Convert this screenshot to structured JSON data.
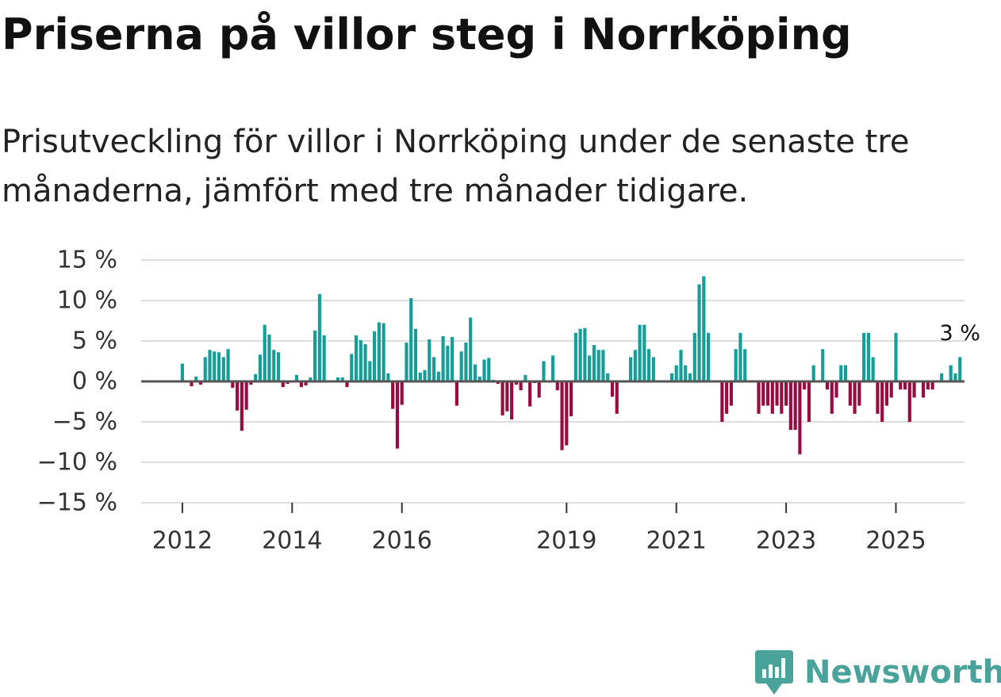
{
  "title": "Priserna på villor steg i Norrköping",
  "subtitle": "Prisutveckling för villor i Norrköping under de senaste tre månaderna, jämfört med tre månader tidigare.",
  "brand": {
    "name": "Newsworthy",
    "color": "#49a39a",
    "icon": "chart-bubble-icon"
  },
  "colors": {
    "positive": "#159e97",
    "negative": "#990b3f",
    "zero_line": "#555555",
    "grid": "#dddddd"
  },
  "chart_data": {
    "type": "bar",
    "title": "Priserna på villor steg i Norrköping",
    "xlabel": "",
    "ylabel": "",
    "unit": "%",
    "ylim": [
      -15,
      15
    ],
    "y_ticks": [
      15,
      10,
      5,
      0,
      -5,
      -10,
      -15
    ],
    "y_tick_labels": [
      "15 %",
      "10 %",
      "5 %",
      "0 %",
      "−5 %",
      "−10 %",
      "−15 %"
    ],
    "x_range": [
      "2011-04",
      "2026-04"
    ],
    "x_ticks": [
      {
        "date": "2012-01",
        "label": "2012"
      },
      {
        "date": "2014-01",
        "label": "2014"
      },
      {
        "date": "2016-01",
        "label": "2016"
      },
      {
        "date": "2019-01",
        "label": "2019"
      },
      {
        "date": "2021-01",
        "label": "2021"
      },
      {
        "date": "2023-01",
        "label": "2023"
      },
      {
        "date": "2025-01",
        "label": "2025"
      }
    ],
    "start": "2012-01",
    "frequency": "monthly",
    "values": [
      2.2,
      0,
      -0.6,
      0.6,
      -0.4,
      3.0,
      3.9,
      3.7,
      3.6,
      3.0,
      4.0,
      -0.8,
      -3.6,
      -6.1,
      -3.5,
      -0.4,
      0.9,
      3.3,
      7.0,
      5.8,
      3.9,
      3.6,
      -0.7,
      -0.3,
      0,
      0.8,
      -0.7,
      -0.5,
      0.5,
      6.3,
      10.8,
      5.7,
      0,
      0,
      0.5,
      0.5,
      -0.7,
      3.4,
      5.7,
      5.1,
      4.6,
      2.5,
      6.2,
      7.3,
      7.2,
      1.0,
      -3.4,
      -8.3,
      -2.9,
      4.8,
      10.3,
      6.5,
      1.1,
      1.4,
      5.2,
      3.0,
      1.2,
      5.6,
      4.4,
      5.5,
      -3.0,
      3.7,
      4.8,
      7.9,
      2.1,
      0.6,
      2.7,
      2.9,
      0.2,
      -0.3,
      -4.2,
      -3.7,
      -4.7,
      -0.4,
      -1.1,
      0.8,
      -3.1,
      -0.2,
      -2.0,
      2.5,
      0,
      3.2,
      -1.1,
      -8.5,
      -7.9,
      -4.3,
      6.0,
      6.5,
      6.6,
      3.2,
      4.5,
      3.9,
      3.9,
      1.0,
      -1.9,
      -4.0,
      0,
      0,
      3.0,
      3.9,
      7.0,
      7.0,
      4.0,
      3.0,
      0,
      0,
      0,
      1.0,
      2.0,
      3.9,
      2.0,
      1.0,
      6.0,
      12.0,
      13.0,
      6.0,
      0,
      0,
      -5.0,
      -4.0,
      -3.0,
      4.0,
      6.0,
      4.0,
      0,
      0,
      -4.0,
      -3.0,
      -3.0,
      -4.0,
      -3.0,
      -4.0,
      -3.0,
      -6.0,
      -6.0,
      -9.0,
      -1.0,
      -5.0,
      2.0,
      0,
      4.0,
      -1.0,
      -4.0,
      -2.0,
      2.0,
      2.0,
      -3.0,
      -4.0,
      -3.0,
      6.0,
      6.0,
      3.0,
      -4.0,
      -5.0,
      -3.0,
      -2.0,
      6.0,
      -1.0,
      -1.0,
      -5.0,
      -2.0,
      0,
      -2.0,
      -1.0,
      -1.0,
      0,
      1.0,
      0,
      2.0,
      1.0,
      3.0
    ],
    "annotation": {
      "label": "3 %",
      "target": "last"
    }
  }
}
